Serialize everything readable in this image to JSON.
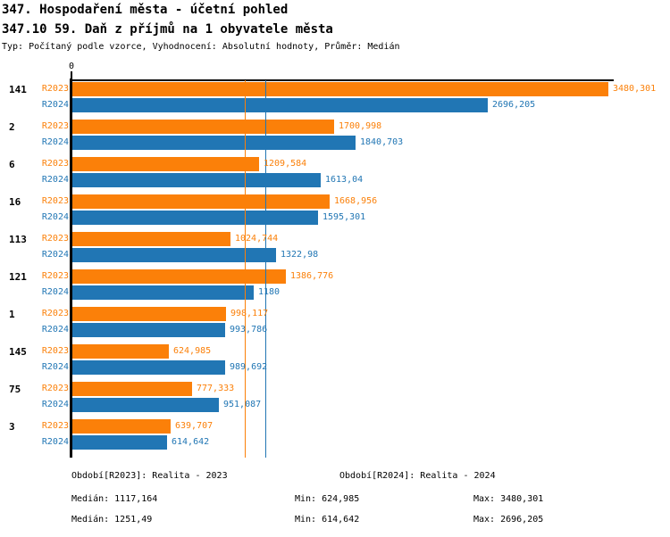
{
  "header": {
    "title1": "347. Hospodaření města - účetní pohled",
    "title2": "347.10 59. Daň z příjmů na 1 obyvatele města",
    "subtitle": "Typ: Počítaný podle vzorce, Vyhodnocení: Absolutní hodnoty, Průměr: Medián"
  },
  "colors": {
    "r2023": "#FB8009",
    "r2024": "#2176B4",
    "axis": "#000000"
  },
  "chart_data": {
    "type": "bar",
    "orientation": "horizontal",
    "title": "347.10 59. Daň z příjmů na 1 obyvatele města",
    "xlabel": "",
    "ylabel": "",
    "xlim": [
      0,
      3480.301
    ],
    "axis_zero_label": "0",
    "grid": false,
    "legend_position": "bottom",
    "categories": [
      "141",
      "2",
      "6",
      "16",
      "113",
      "121",
      "1",
      "145",
      "75",
      "3"
    ],
    "series": [
      {
        "name": "R2023",
        "color": "#FB8009",
        "values": [
          3480.301,
          1700.998,
          1209.584,
          1668.956,
          1024.744,
          1386.776,
          998.117,
          624.985,
          777.333,
          639.707
        ],
        "labels": [
          "3480,301",
          "1700,998",
          "1209,584",
          "1668,956",
          "1024,744",
          "1386,776",
          "998,117",
          "624,985",
          "777,333",
          "639,707"
        ]
      },
      {
        "name": "R2024",
        "color": "#2176B4",
        "values": [
          2696.205,
          1840.703,
          1613.04,
          1595.301,
          1322.98,
          1180,
          993.786,
          989.692,
          951.087,
          614.642
        ],
        "labels": [
          "2696,205",
          "1840,703",
          "1613,04",
          "1595,301",
          "1322,98",
          "1180",
          "993,786",
          "989,692",
          "951,087",
          "614,642"
        ]
      }
    ],
    "median_lines": [
      {
        "series": "R2023",
        "value": 1117.164,
        "color": "#FB8009"
      },
      {
        "series": "R2024",
        "value": 1251.49,
        "color": "#2176B4"
      }
    ]
  },
  "footer": {
    "legend_2023": "Období[R2023]: Realita - 2023",
    "legend_2024": "Období[R2024]: Realita - 2024",
    "stats_2023": {
      "median": "Medián: 1117,164",
      "min": "Min: 624,985",
      "max": "Max: 3480,301"
    },
    "stats_2024": {
      "median": "Medián: 1251,49",
      "min": "Min: 614,642",
      "max": "Max: 2696,205"
    }
  }
}
